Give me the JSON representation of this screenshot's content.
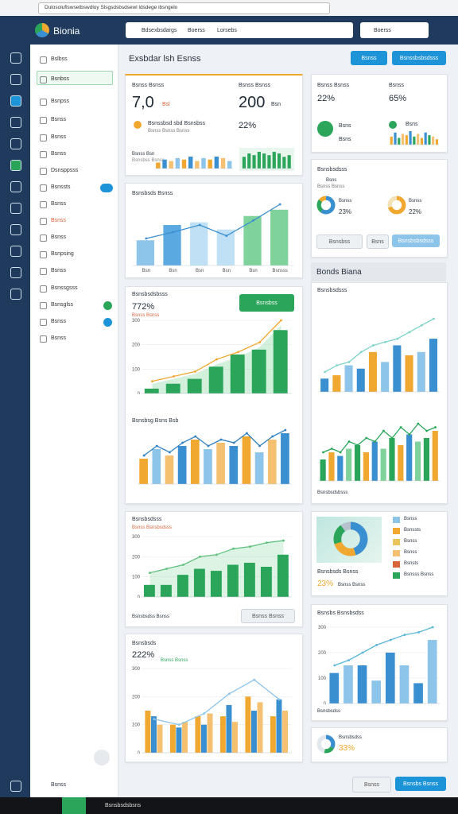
{
  "browser": {
    "url": "Dulosoluflswsetbswdloy Slsgsdsbsdsewl ldsdege ibsngelo"
  },
  "header": {
    "logo": "Bionia",
    "search": [
      "Bdsexbsdargs",
      "Boerss",
      "Lorsebs"
    ],
    "search_right": "Boerss"
  },
  "nav": {
    "items": [
      "Bslbss",
      "Bsnbss",
      "Bsnpss",
      "Bsnss",
      "Bsnss",
      "Bsnss",
      "Dsnsppsss",
      "Bsnssts",
      "Bsnss",
      "Bsnss",
      "Bsnss",
      "Bsnpsing",
      "Bsnss",
      "Bsnssgsss",
      "Bsnsglss",
      "Bsnss",
      "Bsnss"
    ],
    "footer": "Bsnss"
  },
  "page": {
    "title": "Exsbdar lsh Esnss",
    "buttons": [
      "Bsnss",
      "Bsnssbsbsdsss"
    ],
    "footer_buttons": [
      "Bsnss",
      "Bsnsbs Bsnss"
    ],
    "section": "Bonds Biana",
    "taskbar": "Bsnsbsdsbsns"
  },
  "cards": {
    "a": {
      "label1": "Bsnss Bsnss",
      "value1": "7,0",
      "unit1": "Bsl",
      "label2": "Bsnss Bsnss",
      "value2": "200",
      "unit2": "Bsn",
      "note": "Bsnssbsd sbd Bsnsbss",
      "note2": "Bsnss Bsnss Bsnss",
      "pct": "22%",
      "small": "Bsnss Bsn",
      "small2": "Bsnsbss Bsnss"
    },
    "b": {
      "label1": "Bsnss Bsnss",
      "pct1": "22%",
      "label2": "Bsnss",
      "pct2": "65%",
      "t1": "Bsns",
      "t2": "Bsns",
      "t3": "Bsns"
    },
    "c": {
      "title": "Bsnsbsdsss",
      "legend": "Bsns",
      "legend2": "Bsnss Bsnss",
      "l1": "Bsnss",
      "p1": "23%",
      "l2": "Bsnss",
      "p2": "22%",
      "b1": "Bsnsbss",
      "b2": "Bsns",
      "b3": "Bsnsbsbsdsss"
    },
    "d": {
      "title": "Bsnsbsds Bsnss"
    },
    "e": {
      "title": "Bsnsbsdsbsss",
      "pct": "772%",
      "note": "Bsnss Bsnss",
      "button": "Bsnsbss",
      "title2": "Bsnsbsg Bsns Bsb"
    },
    "f": {
      "title": "Bsnsbsdsss",
      "foot": "Bsnsbsdsbsss"
    },
    "g": {
      "title": "Bsnsbsdsss",
      "note": "Bsnss Bsnsbsdsss",
      "foot": "Bsnsbsdss Bsnss",
      "button": "Bsnss Bsnss"
    },
    "h": {
      "title": "Bsnsbsds Bsnss",
      "pct": "23%",
      "note": "Bsnss Bsnss"
    },
    "i": {
      "title": "Bsnsbsds",
      "pct": "222%",
      "note": "Bsnss Bsnss"
    },
    "j": {
      "title": "Bsnsbs Bsnsbsdss",
      "foot": "Bsnsbsdss"
    },
    "k": {
      "title": "Bsnsbsdss",
      "pct": "33%"
    }
  },
  "legend": {
    "labels": [
      "Bsnss",
      "Bsnssts",
      "Bsnss",
      "Bsnss",
      "Bsnsts",
      "Bsnsss Bsnss"
    ],
    "colors": [
      "#8cc4ea",
      "#f0a830",
      "#e8c45a",
      "#f5c070",
      "#d9643a",
      "#2aa55a"
    ]
  },
  "charts": [
    {
      "type": "bar",
      "series": [
        {
          "kind": "bar",
          "colors": [
            "#f0a830",
            "#3a8fd0",
            "#f5c070",
            "#8cc4ea"
          ],
          "values": [
            4,
            6,
            5,
            7,
            6,
            8,
            5,
            7,
            6,
            8,
            7,
            5
          ]
        }
      ]
    },
    {
      "type": "bar",
      "series": [
        {
          "kind": "bar",
          "color": "#2aa55a",
          "values": [
            7,
            9,
            8,
            10,
            9,
            8,
            10,
            9,
            7,
            8
          ]
        }
      ]
    },
    {
      "type": "bar",
      "series": [
        {
          "kind": "bar",
          "colors": [
            "#f0a830",
            "#3a8fd0",
            "#2aa55a",
            "#f5c070"
          ],
          "values": [
            6,
            9,
            5,
            8,
            7,
            10,
            6,
            8,
            5,
            9,
            7,
            6,
            4
          ]
        }
      ]
    },
    {
      "type": "donut",
      "colors": [
        "#3a8fd0",
        "#2aa55a",
        "#f0a830"
      ],
      "values": [
        60,
        25,
        15
      ]
    },
    {
      "type": "donut",
      "colors": [
        "#f0a830",
        "#f3e2b8"
      ],
      "values": [
        70,
        30
      ]
    },
    {
      "type": "bar",
      "categories": [
        "Bsn",
        "Bsn",
        "Bsn",
        "Bsn",
        "Bsn",
        "Bsnsss"
      ],
      "series": [
        {
          "kind": "bar",
          "colors": [
            "#8cc4ea",
            "#5aa9e0",
            "#bfe0f5",
            "#bfe0f5",
            "#7fd39a",
            "#7fd39a"
          ],
          "values": [
            28,
            45,
            48,
            40,
            55,
            62
          ]
        },
        {
          "kind": "line",
          "color": "#3a8fd0",
          "values": [
            30,
            37,
            45,
            33,
            50,
            68
          ]
        }
      ]
    },
    {
      "type": "bar",
      "yticks": [
        0,
        100,
        200,
        300
      ],
      "series": [
        {
          "kind": "area",
          "color": "#7fd39a",
          "values": [
            40,
            60,
            80,
            120,
            150,
            190,
            280
          ]
        },
        {
          "kind": "bar",
          "color": "#2aa55a",
          "values": [
            20,
            40,
            60,
            110,
            160,
            180,
            260
          ]
        },
        {
          "kind": "line",
          "color": "#f0a830",
          "values": [
            50,
            70,
            90,
            140,
            170,
            210,
            300
          ]
        }
      ]
    },
    {
      "type": "bar",
      "series": [
        {
          "kind": "bar",
          "colors": [
            "#f0a830",
            "#8cc4ea",
            "#f5c070",
            "#3a8fd0"
          ],
          "values": [
            8,
            11,
            9,
            12,
            14,
            11,
            13,
            12,
            15,
            10,
            14,
            16
          ]
        },
        {
          "kind": "line",
          "color": "#2d7fc0",
          "values": [
            9,
            12,
            10,
            13,
            15,
            12,
            14,
            13,
            16,
            12,
            15,
            17
          ]
        }
      ]
    },
    {
      "type": "bar",
      "series": [
        {
          "kind": "bar",
          "colors": [
            "#3a8fd0",
            "#f0a830",
            "#8cc4ea"
          ],
          "values": [
            4,
            5,
            8,
            7,
            12,
            9,
            14,
            11,
            12,
            16
          ]
        },
        {
          "kind": "line",
          "color": "#7fd3c8",
          "values": [
            6,
            8,
            9,
            12,
            14,
            15,
            16,
            18,
            20,
            22
          ]
        }
      ]
    },
    {
      "type": "bar",
      "series": [
        {
          "kind": "bar",
          "colors": [
            "#2aa55a",
            "#f0a830",
            "#3a8fd0",
            "#7fd39a"
          ],
          "values": [
            6,
            8,
            7,
            9,
            10,
            8,
            11,
            9,
            12,
            10,
            13,
            11,
            12,
            14
          ]
        },
        {
          "kind": "line",
          "color": "#2aa55a",
          "values": [
            8,
            9,
            8,
            11,
            10,
            12,
            11,
            14,
            12,
            15,
            13,
            16,
            14,
            15
          ]
        }
      ]
    },
    {
      "type": "bar",
      "yticks": [
        0,
        100,
        200,
        300
      ],
      "series": [
        {
          "kind": "area",
          "color": "#9fe0b3",
          "values": [
            120,
            140,
            160,
            200,
            210,
            240,
            250,
            270,
            280
          ]
        },
        {
          "kind": "bar",
          "color": "#2aa55a",
          "values": [
            60,
            60,
            110,
            140,
            130,
            160,
            170,
            150,
            210
          ]
        },
        {
          "kind": "line",
          "color": "#5cbf7a",
          "values": [
            120,
            140,
            160,
            200,
            210,
            240,
            250,
            270,
            280
          ]
        }
      ]
    },
    {
      "type": "donut",
      "colors": [
        "#3a8fd0",
        "#f0a830",
        "#2aa55a",
        "#b8c2cc"
      ],
      "values": [
        45,
        25,
        20,
        10
      ]
    },
    {
      "type": "bar",
      "yticks": [
        0,
        100,
        200,
        300
      ],
      "series": [
        {
          "kind": "bar",
          "color": "#f0a830",
          "values": [
            150,
            100,
            130,
            130,
            200,
            130
          ]
        },
        {
          "kind": "bar",
          "color": "#3a8fd0",
          "values": [
            130,
            90,
            100,
            170,
            150,
            190
          ]
        },
        {
          "kind": "bar",
          "color": "#f5c070",
          "values": [
            100,
            110,
            140,
            110,
            180,
            150
          ]
        },
        {
          "kind": "line",
          "color": "#8cc4ea",
          "values": [
            120,
            100,
            140,
            210,
            260,
            190
          ]
        }
      ]
    },
    {
      "type": "bar",
      "yticks": [
        0,
        100,
        200,
        300
      ],
      "series": [
        {
          "kind": "bar",
          "colors": [
            "#3a8fd0",
            "#8cc4ea"
          ],
          "values": [
            120,
            150,
            150,
            90,
            200,
            150,
            80,
            250
          ]
        },
        {
          "kind": "line",
          "color": "#5ab6d8",
          "values": [
            150,
            170,
            200,
            230,
            250,
            270,
            280,
            300
          ]
        }
      ]
    },
    {
      "type": "donut",
      "colors": [
        "#3a8fd0",
        "#2aa55a",
        "#e3e8ee"
      ],
      "values": [
        33,
        20,
        47
      ]
    }
  ]
}
